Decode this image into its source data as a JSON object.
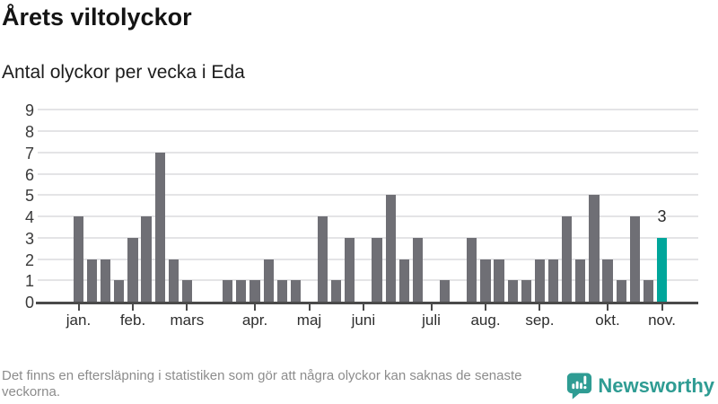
{
  "header": {
    "title": "Årets viltolyckor",
    "subtitle": "Antal olyckor per vecka i Eda"
  },
  "chart_data": {
    "type": "bar",
    "title": "Årets viltolyckor",
    "subtitle": "Antal olyckor per vecka i Eda",
    "x_unit": "week of year",
    "values": [
      4,
      2,
      2,
      1,
      3,
      4,
      7,
      2,
      1,
      0,
      0,
      1,
      1,
      1,
      2,
      1,
      1,
      0,
      4,
      1,
      3,
      0,
      3,
      5,
      2,
      3,
      0,
      1,
      0,
      3,
      2,
      2,
      1,
      1,
      2,
      2,
      4,
      2,
      5,
      2,
      1,
      4,
      1,
      3
    ],
    "week_count": 44,
    "ylim": [
      0,
      9
    ],
    "yticks": [
      0,
      1,
      2,
      3,
      4,
      5,
      6,
      7,
      8,
      9
    ],
    "month_ticks": [
      {
        "label": "jan.",
        "week": 1
      },
      {
        "label": "feb.",
        "week": 5
      },
      {
        "label": "mars",
        "week": 9
      },
      {
        "label": "apr.",
        "week": 14
      },
      {
        "label": "maj",
        "week": 18
      },
      {
        "label": "juni",
        "week": 22
      },
      {
        "label": "juli",
        "week": 27
      },
      {
        "label": "aug.",
        "week": 31
      },
      {
        "label": "sep.",
        "week": 35
      },
      {
        "label": "okt.",
        "week": 40
      },
      {
        "label": "nov.",
        "week": 44
      }
    ],
    "annotation": {
      "text": "3",
      "week": 44
    },
    "highlight_last_bar": true,
    "grid": true,
    "legend": false,
    "colors": {
      "bar": "#6f6f75",
      "highlight_bar": "#00a69b",
      "gridline": "#e4e4e6",
      "axis": "#4a4a4a"
    }
  },
  "footer": {
    "disclaimer": "Det finns en eftersläpning i statistiken som gör att några olyckor kan saknas de senaste veckorna.",
    "brand": {
      "name": "Newsworthy",
      "color": "#2f9c93",
      "icon": "newsworthy-speech-bubble-chart-icon"
    }
  }
}
